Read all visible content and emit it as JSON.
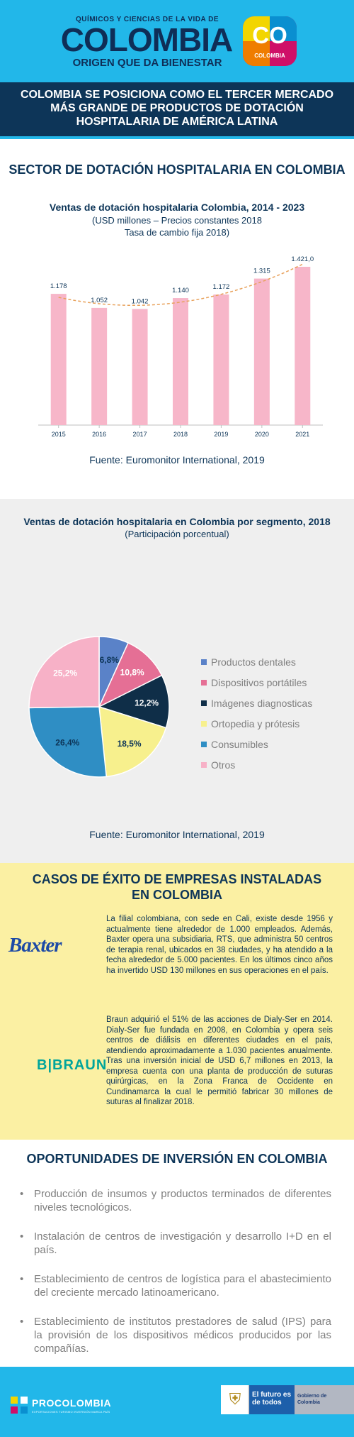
{
  "header": {
    "kicker": "QUÍMICOS Y CIENCIAS DE LA VIDA DE",
    "country": "COLOMBIA",
    "tagline": "ORIGEN QUE DA BIENESTAR",
    "co_logo_text": "CO",
    "co_logo_sub": "COLOMBIA"
  },
  "title_band": {
    "text": "COLOMBIA SE POSICIONA COMO EL TERCER MERCADO MÁS GRANDE DE PRODUCTOS DE DOTACIÓN HOSPITALARIA DE AMÉRICA LATINA"
  },
  "section1": {
    "title": "SECTOR DE DOTACIÓN HOSPITALARIA EN COLOMBIA"
  },
  "chart1_text": {
    "title": "Ventas de dotación hospitalaria Colombia, 2014 - 2023",
    "subtitle_line1": "(USD millones – Precios constantes 2018",
    "subtitle_line2": "Tasa de cambio fija 2018)",
    "source": "Fuente: Euromonitor International, 2019"
  },
  "chart2_text": {
    "title": "Ventas de dotación hospitalaria en Colombia por segmento, 2018",
    "subtitle": "(Participación porcentual)",
    "source": "Fuente: Euromonitor International, 2019"
  },
  "chart_data": [
    {
      "type": "bar",
      "title": "Ventas de dotación hospitalaria Colombia, 2014 - 2023",
      "categories": [
        "2015",
        "2016",
        "2017",
        "2018",
        "2019",
        "2020",
        "2021"
      ],
      "values": [
        1178,
        1052,
        1042,
        1140,
        1172,
        1315,
        1421.0
      ],
      "value_labels": [
        "1.178",
        "1.052",
        "1.042",
        "1.140",
        "1.172",
        "1.315",
        "1.421,0"
      ],
      "ylim": [
        0,
        1650
      ],
      "bar_color": "#f7b6c9",
      "trend_color": "#e8a15b",
      "grid": false
    },
    {
      "type": "pie",
      "title": "Ventas de dotación hospitalaria en Colombia por segmento, 2018",
      "labels": [
        "Productos dentales",
        "Dispositivos portátiles",
        "Imágenes diagnosticas",
        "Ortopedia y prótesis",
        "Consumibles",
        "Otros"
      ],
      "values": [
        6.8,
        10.8,
        12.2,
        18.5,
        26.4,
        25.2
      ],
      "value_labels": [
        "6,8%",
        "10,8%",
        "12,2%",
        "18,5%",
        "26,4%",
        "25,2%"
      ],
      "colors": [
        "#5a82c8",
        "#e56f95",
        "#0f2e48",
        "#f7f08d",
        "#2f8ec4",
        "#f7b1c7"
      ],
      "legend_position": "right"
    }
  ],
  "cases": {
    "title": "CASOS DE ÉXITO DE EMPRESAS INSTALADAS EN COLOMBIA",
    "baxter_logo": "Baxter",
    "baxter_text": "La filial colombiana, con sede en Cali, existe desde 1956 y actualmente tiene alrededor de 1.000 empleados. Además, Baxter opera una subsidiaria, RTS, que administra 50 centros de terapia renal, ubicados en 38 ciudades, y ha atendido a la fecha alrededor de 5.000 pacientes. En los últimos cinco años ha invertido USD 130 millones en sus operaciones en el país.",
    "braun_logo": "B|BRAUN",
    "braun_text": "Braun adquirió el 51% de las acciones de Dialy-Ser en 2014. Dialy-Ser fue fundada en 2008, en Colombia y opera seis centros de diálisis en diferentes ciudades en el país, atendiendo aproximadamente a 1.030 pacientes anualmente. Tras una inversión inicial de USD 6,7 millones en 2013, la empresa cuenta con una planta de producción de suturas quirúrgicas, en la Zona Franca de Occidente en Cundinamarca la cual le permitió fabricar 30 millones de suturas al finalizar 2018."
  },
  "opportunities": {
    "title": "OPORTUNIDADES DE INVERSIÓN EN COLOMBIA",
    "items": [
      "Producción de insumos y productos terminados de diferentes niveles tecnológicos.",
      "Instalación de centros de investigación y desarrollo I+D en el país.",
      "Establecimiento de centros de logística para el abastecimiento del creciente mercado latinoamericano.",
      "Establecimiento de institutos prestadores de salud (IPS) para la provisión de los dispositivos médicos producidos por las compañías."
    ]
  },
  "footer": {
    "procolombia": "PROCOLOMBIA",
    "procolombia_tag": "EXPORTACIONES TURISMO INVERSIÓN MARCA PAÍS",
    "gov_left": "El futuro es de todos",
    "gov_right": "Gobierno de Colombia"
  }
}
